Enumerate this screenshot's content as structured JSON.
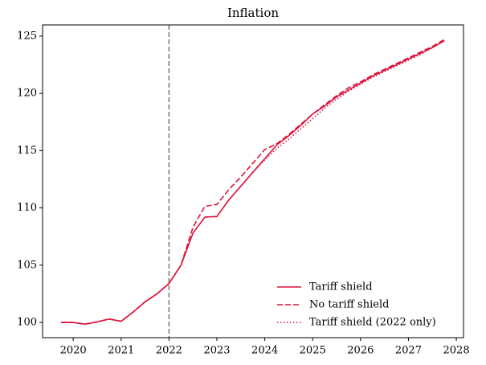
{
  "chart_data": {
    "type": "line",
    "title": "Inflation",
    "x": [
      2019.75,
      2020.0,
      2020.25,
      2020.5,
      2020.75,
      2021.0,
      2021.25,
      2021.5,
      2021.75,
      2022.0,
      2022.25,
      2022.5,
      2022.75,
      2023.0,
      2023.25,
      2023.5,
      2023.75,
      2024.0,
      2024.25,
      2024.5,
      2024.75,
      2025.0,
      2025.25,
      2025.5,
      2025.75,
      2026.0,
      2026.25,
      2026.5,
      2026.75,
      2027.0,
      2027.25,
      2027.5,
      2027.75
    ],
    "series": [
      {
        "name": "Tariff shield",
        "color": "#dc143c",
        "linestyle": "solid",
        "values": [
          100.0,
          100.0,
          99.85,
          100.05,
          100.3,
          100.1,
          100.9,
          101.8,
          102.5,
          103.4,
          105.0,
          107.8,
          109.2,
          109.25,
          110.7,
          111.9,
          113.1,
          114.3,
          115.5,
          116.3,
          117.2,
          118.2,
          118.9,
          119.7,
          120.3,
          120.9,
          121.5,
          122.0,
          122.5,
          123.0,
          123.5,
          124.0,
          124.6
        ]
      },
      {
        "name": "No tariff shield",
        "color": "#dc143c",
        "linestyle": "dashed",
        "values": [
          100.0,
          100.0,
          99.85,
          100.05,
          100.3,
          100.1,
          100.9,
          101.8,
          102.5,
          103.4,
          105.0,
          108.3,
          110.15,
          110.3,
          111.6,
          112.7,
          113.9,
          115.1,
          115.6,
          116.4,
          117.3,
          118.2,
          119.0,
          119.8,
          120.5,
          121.0,
          121.6,
          122.1,
          122.6,
          123.1,
          123.6,
          124.1,
          124.7
        ]
      },
      {
        "name": "Tariff shield (2022 only)",
        "color": "#dc143c",
        "linestyle": "dotted",
        "values": [
          100.0,
          100.0,
          99.85,
          100.05,
          100.3,
          100.1,
          100.9,
          101.8,
          102.5,
          103.4,
          105.0,
          107.8,
          109.2,
          109.25,
          110.7,
          111.9,
          113.1,
          114.2,
          115.2,
          116.0,
          116.9,
          117.8,
          118.7,
          119.5,
          120.2,
          120.8,
          121.4,
          121.9,
          122.4,
          122.9,
          123.4,
          124.0,
          124.6
        ]
      }
    ],
    "xlim": [
      2019.36,
      2028.15
    ],
    "xticks": [
      2020,
      2021,
      2022,
      2023,
      2024,
      2025,
      2026,
      2027,
      2028
    ],
    "ylim": [
      98.67,
      125.98
    ],
    "yticks": [
      100,
      105,
      110,
      115,
      120,
      125
    ],
    "vline": 2022,
    "legend": "lower right"
  }
}
